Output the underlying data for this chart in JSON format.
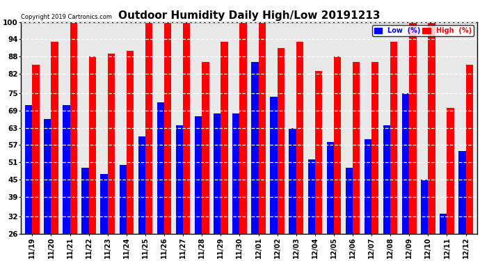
{
  "title": "Outdoor Humidity Daily High/Low 20191213",
  "copyright": "Copyright 2019 Cartronics.com",
  "dates": [
    "11/19",
    "11/20",
    "11/21",
    "11/22",
    "11/23",
    "11/24",
    "11/25",
    "11/26",
    "11/27",
    "11/28",
    "11/29",
    "11/30",
    "12/01",
    "12/02",
    "12/03",
    "12/04",
    "12/05",
    "12/06",
    "12/07",
    "12/08",
    "12/09",
    "12/10",
    "12/11",
    "12/12"
  ],
  "high": [
    85,
    93,
    100,
    88,
    89,
    90,
    100,
    100,
    100,
    86,
    93,
    100,
    100,
    91,
    93,
    83,
    88,
    86,
    86,
    93,
    100,
    100,
    70,
    85
  ],
  "low": [
    71,
    66,
    71,
    49,
    47,
    50,
    60,
    72,
    64,
    67,
    68,
    68,
    86,
    74,
    63,
    52,
    58,
    49,
    59,
    64,
    75,
    45,
    33,
    55
  ],
  "bar_color_high": "#ff0000",
  "bar_color_low": "#0000ff",
  "ylim_min": 26,
  "ylim_max": 100,
  "yticks": [
    26,
    32,
    39,
    45,
    51,
    57,
    63,
    69,
    75,
    82,
    88,
    94,
    100
  ],
  "background_color": "#ffffff",
  "title_fontsize": 11,
  "legend_low_label": "Low  (%)",
  "legend_high_label": "High  (%)"
}
